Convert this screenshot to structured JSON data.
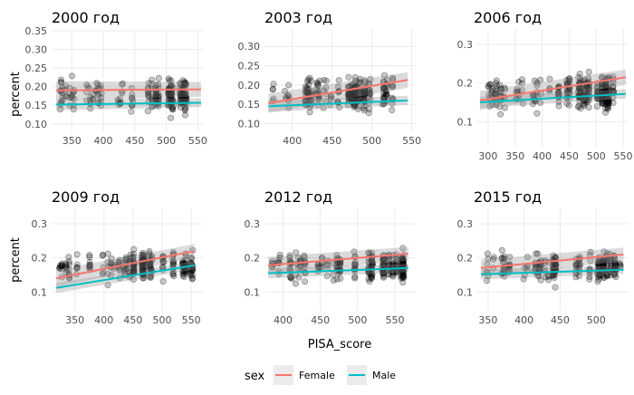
{
  "chart_data": {
    "type": "scatter",
    "ylabel": "percent",
    "xlabel": "PISA_score",
    "legend": {
      "title": "sex",
      "placement": "bottom",
      "entries": [
        {
          "name": "Female",
          "color": "#F8766D"
        },
        {
          "name": "Male",
          "color": "#00BFC4"
        }
      ]
    },
    "panels": [
      {
        "title": "2000 год",
        "xlim": [
          318,
          558
        ],
        "ylim": [
          0.08,
          0.355
        ],
        "xticks": [
          350,
          400,
          450,
          500,
          550
        ],
        "yticks": [
          0.1,
          0.15,
          0.2,
          0.25,
          0.3,
          0.35
        ],
        "ytick_labels": [
          "0.10",
          "0.15",
          "0.20",
          "0.25",
          "0.30",
          "0.35"
        ],
        "fit_female": [
          [
            325,
            0.19
          ],
          [
            555,
            0.193
          ]
        ],
        "fit_male": [
          [
            325,
            0.152
          ],
          [
            555,
            0.157
          ]
        ]
      },
      {
        "title": "2003 год",
        "xlim": [
          365,
          555
        ],
        "ylim": [
          0.08,
          0.345
        ],
        "xticks": [
          400,
          450,
          500,
          550
        ],
        "yticks": [
          0.1,
          0.15,
          0.2,
          0.25,
          0.3
        ],
        "ytick_labels": [
          "0.10",
          "0.15",
          "0.20",
          "0.25",
          "0.30"
        ],
        "fit_female": [
          [
            370,
            0.153
          ],
          [
            545,
            0.213
          ]
        ],
        "fit_male": [
          [
            370,
            0.145
          ],
          [
            545,
            0.16
          ]
        ]
      },
      {
        "title": "2006 год",
        "xlim": [
          280,
          560
        ],
        "ylim": [
          0.035,
          0.34
        ],
        "xticks": [
          300,
          350,
          400,
          450,
          500,
          550
        ],
        "yticks": [
          0.1,
          0.2,
          0.3
        ],
        "ytick_labels": [
          "0.1",
          "0.2",
          "0.3"
        ],
        "fit_female": [
          [
            285,
            0.155
          ],
          [
            555,
            0.215
          ]
        ],
        "fit_male": [
          [
            285,
            0.15
          ],
          [
            555,
            0.172
          ]
        ]
      },
      {
        "title": "2009 год",
        "xlim": [
          310,
          570
        ],
        "ylim": [
          0.045,
          0.345
        ],
        "xticks": [
          350,
          400,
          450,
          500,
          550
        ],
        "yticks": [
          0.1,
          0.2,
          0.3
        ],
        "ytick_labels": [
          "0.1",
          "0.2",
          "0.3"
        ],
        "fit_female": [
          [
            318,
            0.14
          ],
          [
            555,
            0.22
          ]
        ],
        "fit_male": [
          [
            318,
            0.112
          ],
          [
            555,
            0.178
          ]
        ]
      },
      {
        "title": "2012 год",
        "xlim": [
          375,
          578
        ],
        "ylim": [
          0.045,
          0.345
        ],
        "xticks": [
          400,
          450,
          500,
          550
        ],
        "yticks": [
          0.1,
          0.2,
          0.3
        ],
        "ytick_labels": [
          "0.1",
          "0.2",
          "0.3"
        ],
        "fit_female": [
          [
            380,
            0.178
          ],
          [
            568,
            0.212
          ]
        ],
        "fit_male": [
          [
            380,
            0.155
          ],
          [
            568,
            0.17
          ]
        ]
      },
      {
        "title": "2015 год",
        "xlim": [
          335,
          545
        ],
        "ylim": [
          0.045,
          0.345
        ],
        "xticks": [
          350,
          400,
          450,
          500
        ],
        "yticks": [
          0.1,
          0.2,
          0.3
        ],
        "ytick_labels": [
          "0.1",
          "0.2",
          "0.3"
        ],
        "fit_female": [
          [
            340,
            0.17
          ],
          [
            538,
            0.21
          ]
        ],
        "fit_male": [
          [
            340,
            0.152
          ],
          [
            538,
            0.165
          ]
        ]
      }
    ]
  }
}
